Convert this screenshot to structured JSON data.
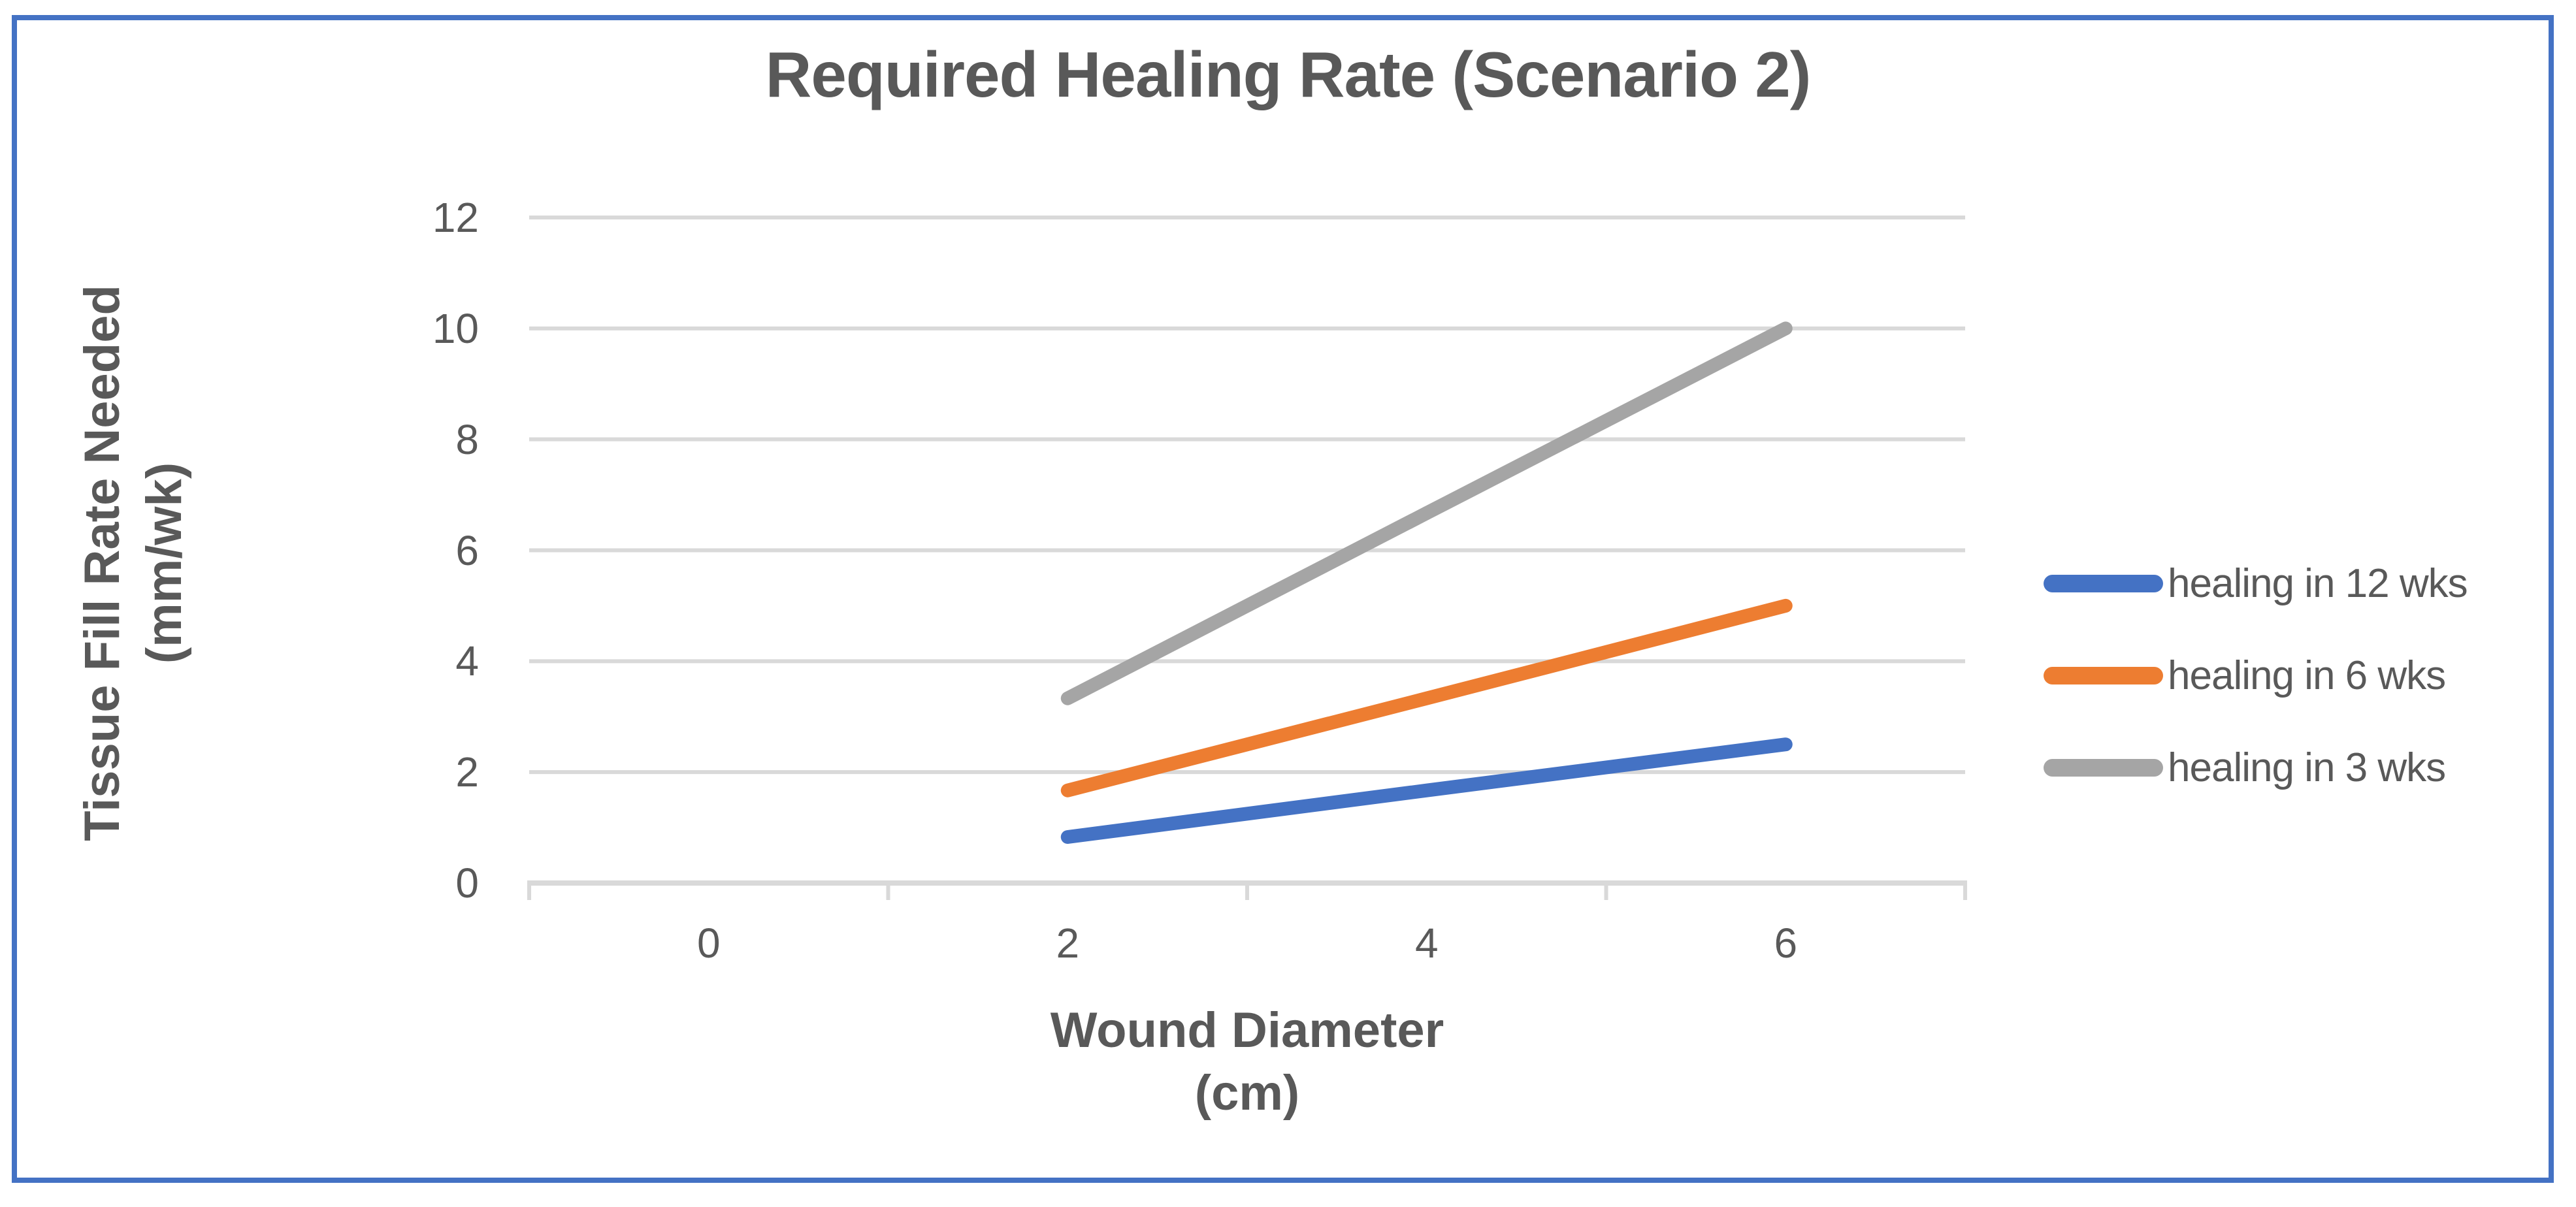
{
  "window": {
    "background": "#FFFFFF",
    "frame_border_color": "#4472C4"
  },
  "chart_data": {
    "type": "line",
    "title": "Required Healing Rate (Scenario 2)",
    "x_axis": {
      "title_lines": [
        "Wound Diameter",
        "(cm)"
      ],
      "categories": [
        "0",
        "2",
        "4",
        "6"
      ]
    },
    "y_axis": {
      "title_lines": [
        "Tissue Fill Rate Needed",
        "(mm/wk)"
      ],
      "min": 0,
      "max": 12,
      "tick_step": 2,
      "ticks": [
        "0",
        "2",
        "4",
        "6",
        "8",
        "10",
        "12"
      ]
    },
    "grid": true,
    "legend_position": "right",
    "series": [
      {
        "name": "healing in 12 wks",
        "color": "#4472C4",
        "values": [
          null,
          0.83,
          1.67,
          2.5
        ]
      },
      {
        "name": "healing in 6 wks",
        "color": "#ED7D31",
        "values": [
          null,
          1.67,
          3.33,
          5
        ]
      },
      {
        "name": "healing in 3 wks",
        "color": "#A5A5A5",
        "values": [
          null,
          3.33,
          6.67,
          10
        ]
      }
    ],
    "text_color": "#595959",
    "gridline_color": "#D9D9D9"
  }
}
